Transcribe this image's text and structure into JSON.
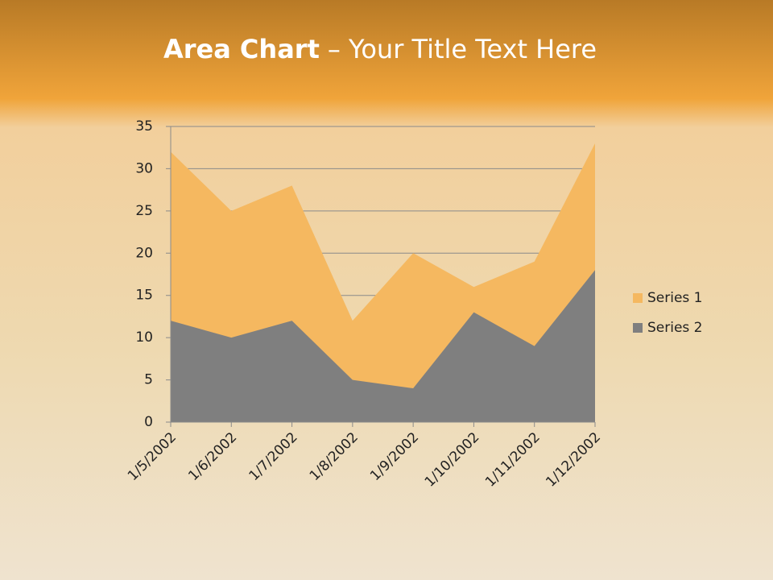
{
  "chart_data": {
    "type": "area",
    "title": {
      "bold": "Area Chart",
      "rest": "– Your Title Text Here"
    },
    "categories": [
      "1/5/2002",
      "1/6/2002",
      "1/7/2002",
      "1/8/2002",
      "1/9/2002",
      "1/10/2002",
      "1/11/2002",
      "1/12/2002"
    ],
    "series": [
      {
        "name": "Series 1",
        "color": "#f5b860",
        "values": [
          32,
          25,
          28,
          12,
          20,
          16,
          19,
          33
        ]
      },
      {
        "name": "Series 2",
        "color": "#7f7f7f",
        "values": [
          12,
          10,
          12,
          5,
          4,
          13,
          9,
          18
        ]
      }
    ],
    "ylim": [
      0,
      35
    ],
    "yticks": [
      0,
      5,
      10,
      15,
      20,
      25,
      30,
      35
    ],
    "grid": true,
    "legend": "right"
  }
}
